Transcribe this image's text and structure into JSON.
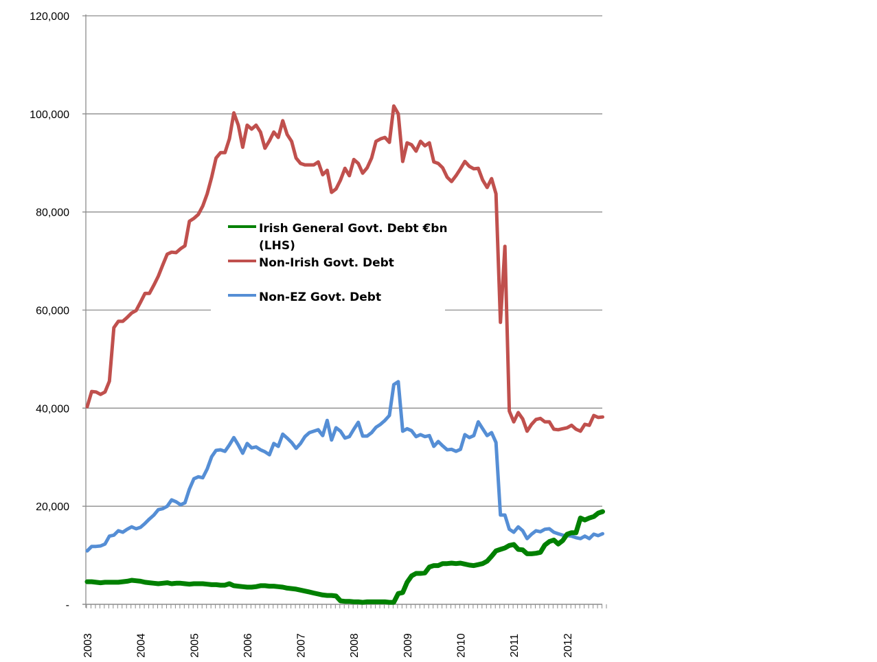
{
  "chart_data": {
    "type": "line",
    "title": "",
    "xlabel": "",
    "ylabel": "",
    "ylim": [
      0,
      120000
    ],
    "yticks": [
      0,
      20000,
      40000,
      60000,
      80000,
      100000,
      120000
    ],
    "ytick_labels": [
      "-",
      "20,000",
      "40,000",
      "60,000",
      "80,000",
      "100,000",
      "120,000"
    ],
    "x_start": "2003-01",
    "x_frequency": "monthly",
    "xtick_labels": [
      "2003",
      "2004",
      "2005",
      "2006",
      "2007",
      "2008",
      "2009",
      "2010",
      "2011",
      "2012"
    ],
    "grid": true,
    "legend_placement": "center-left",
    "series": [
      {
        "name": "Irish General Govt. Debt €bn (LHS)",
        "color": "#008000",
        "values": [
          4600,
          4600,
          4500,
          4400,
          4500,
          4500,
          4500,
          4500,
          4600,
          4700,
          4900,
          4800,
          4700,
          4500,
          4400,
          4300,
          4200,
          4300,
          4400,
          4200,
          4300,
          4300,
          4200,
          4100,
          4200,
          4200,
          4200,
          4100,
          4000,
          4000,
          3900,
          3900,
          4200,
          3800,
          3700,
          3600,
          3500,
          3500,
          3600,
          3800,
          3800,
          3700,
          3700,
          3600,
          3500,
          3300,
          3200,
          3100,
          2900,
          2700,
          2500,
          2300,
          2100,
          1900,
          1800,
          1800,
          1700,
          700,
          600,
          600,
          500,
          500,
          400,
          500,
          500,
          500,
          500,
          500,
          400,
          400,
          2200,
          2400,
          4500,
          5800,
          6300,
          6300,
          6400,
          7600,
          7900,
          7900,
          8300,
          8300,
          8400,
          8300,
          8400,
          8200,
          8000,
          7900,
          8100,
          8300,
          8800,
          9800,
          10900,
          11200,
          11500,
          12000,
          12200,
          11200,
          11100,
          10300,
          10300,
          10400,
          10600,
          12100,
          12800,
          13100,
          12300,
          13000,
          14300,
          14600,
          14600,
          17600,
          17200,
          17600,
          17900,
          18600,
          18900
        ]
      },
      {
        "name": "Non-Irish Govt. Debt",
        "color": "#C0504D",
        "values": [
          40300,
          43400,
          43300,
          42800,
          43300,
          45500,
          56400,
          57700,
          57700,
          58500,
          59400,
          59900,
          61600,
          63400,
          63400,
          65100,
          66900,
          69200,
          71400,
          71800,
          71700,
          72500,
          73100,
          78100,
          78700,
          79500,
          81200,
          83700,
          87100,
          91000,
          92100,
          92100,
          94900,
          100200,
          97700,
          93200,
          97700,
          96900,
          97700,
          96300,
          93000,
          94500,
          96300,
          95200,
          98600,
          95800,
          94400,
          91000,
          89900,
          89600,
          89600,
          89600,
          90200,
          87600,
          88500,
          84000,
          84700,
          86500,
          88900,
          87400,
          90700,
          89900,
          87900,
          89000,
          91000,
          94400,
          94900,
          95200,
          94200,
          101600,
          100000,
          90300,
          94100,
          93700,
          92400,
          94400,
          93500,
          94100,
          90200,
          89900,
          89000,
          87100,
          86200,
          87400,
          88800,
          90300,
          89300,
          88800,
          88900,
          86500,
          85000,
          86800,
          83700,
          57500,
          73000,
          39400,
          37200,
          39100,
          37800,
          35300,
          36700,
          37700,
          37900,
          37200,
          37200,
          35700,
          35600,
          35800,
          36000,
          36500,
          35700,
          35300,
          36700,
          36500,
          38500,
          38100,
          38200
        ]
      },
      {
        "name": "Non-EZ Govt. Debt",
        "color": "#558ED5",
        "values": [
          10900,
          11800,
          11800,
          11900,
          12300,
          13900,
          14100,
          15000,
          14700,
          15300,
          15800,
          15400,
          15700,
          16500,
          17400,
          18200,
          19300,
          19500,
          20000,
          21300,
          20900,
          20300,
          20700,
          23500,
          25600,
          26000,
          25800,
          27600,
          30100,
          31400,
          31500,
          31200,
          32500,
          34000,
          32500,
          30800,
          32800,
          31900,
          32100,
          31500,
          31100,
          30500,
          32800,
          32200,
          34700,
          33900,
          33000,
          31800,
          32800,
          34200,
          35000,
          35300,
          35600,
          34400,
          37500,
          33500,
          36000,
          35300,
          33900,
          34200,
          35700,
          37100,
          34300,
          34300,
          35000,
          36100,
          36700,
          37500,
          38500,
          44800,
          45400,
          35300,
          35800,
          35400,
          34200,
          34600,
          34200,
          34400,
          32200,
          33200,
          32300,
          31500,
          31600,
          31200,
          31600,
          34600,
          34000,
          34400,
          37200,
          35800,
          34400,
          35000,
          33000,
          18200,
          18200,
          15300,
          14700,
          15800,
          15000,
          13400,
          14300,
          15000,
          14800,
          15300,
          15400,
          14700,
          14400,
          14100,
          14000,
          13900,
          13600,
          13400,
          13900,
          13400,
          14300,
          14000,
          14400
        ]
      }
    ]
  }
}
